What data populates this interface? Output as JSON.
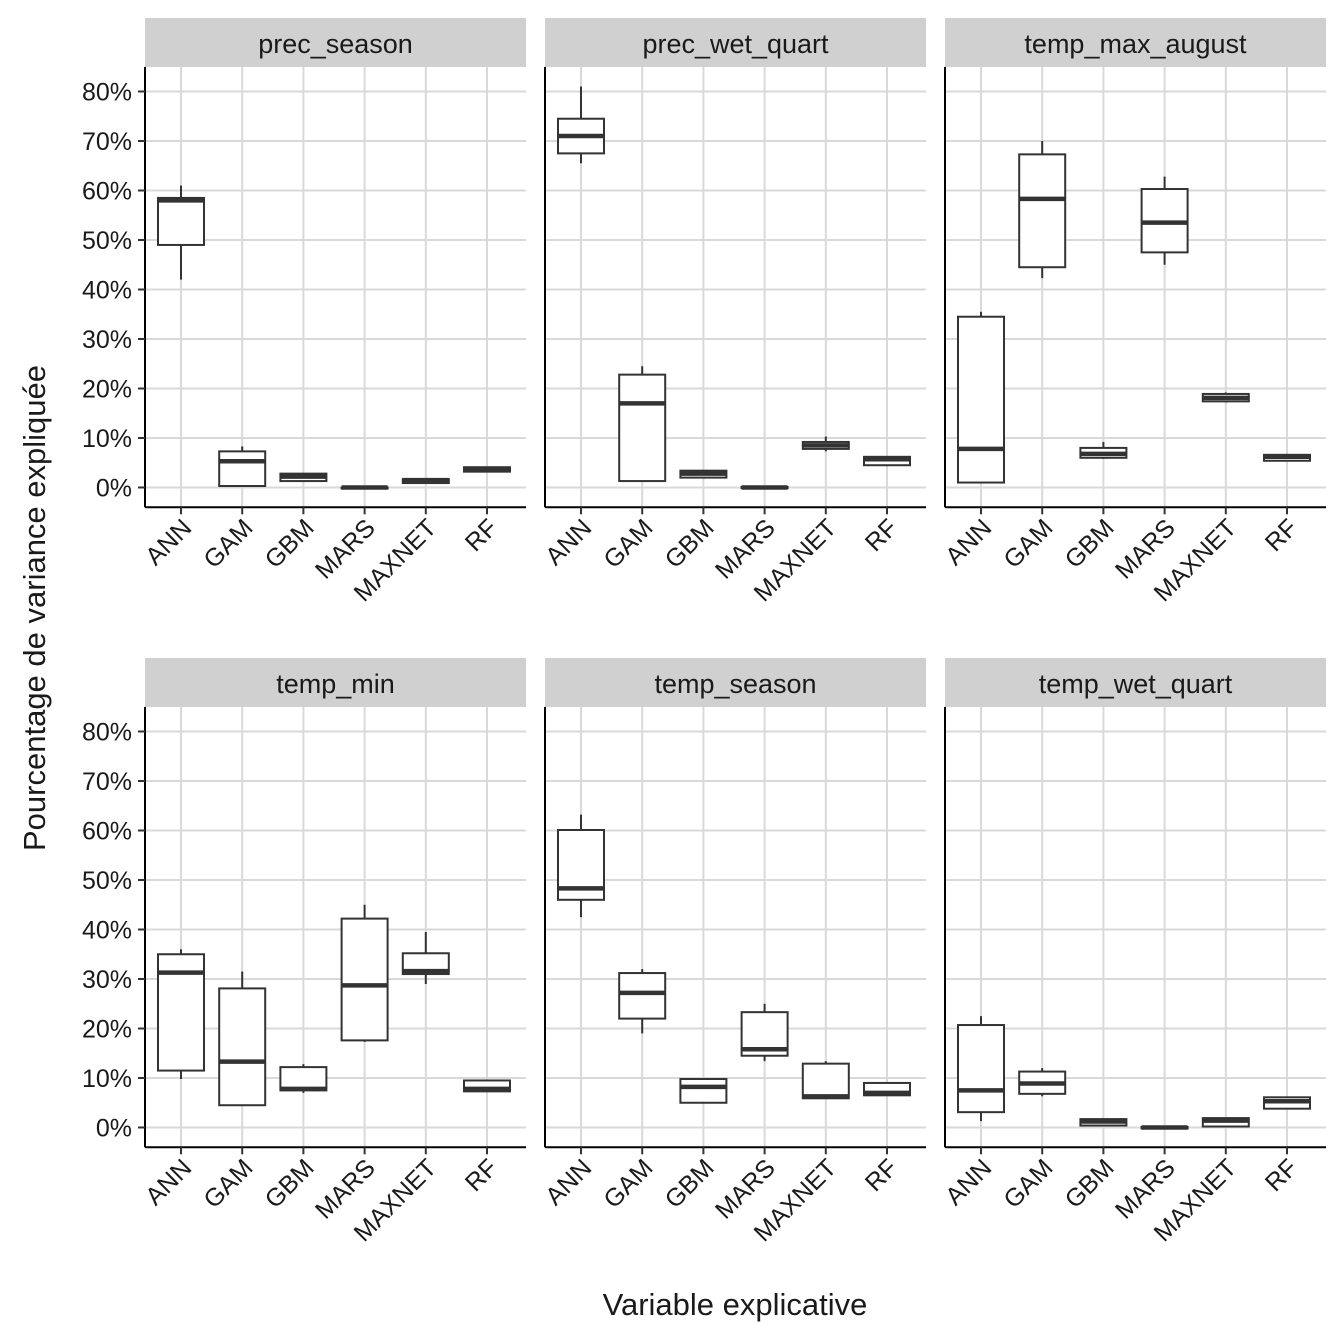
{
  "chart_data": {
    "type": "boxplot",
    "facet_layout": "2 rows x 3 columns",
    "xlabel": "Variable explicative",
    "ylabel": "Pourcentage de variance expliquée",
    "ylim": [
      -4,
      85
    ],
    "y_ticks": [
      0,
      10,
      20,
      30,
      40,
      50,
      60,
      70,
      80
    ],
    "y_tick_labels": [
      "0%",
      "10%",
      "20%",
      "30%",
      "40%",
      "50%",
      "60%",
      "70%",
      "80%"
    ],
    "categories": [
      "ANN",
      "GAM",
      "GBM",
      "MARS",
      "MAXNET",
      "RF"
    ],
    "colors": {
      "box_stroke": "#333333",
      "grid": "#d9d9d9",
      "strip_bg": "#d0d0d0",
      "background": "#ffffff"
    },
    "facets": [
      {
        "title": "prec_season",
        "boxes": [
          {
            "category": "ANN",
            "min": 42,
            "q1": 49,
            "median": 58,
            "q3": 58.5,
            "max": 61
          },
          {
            "category": "GAM",
            "min": 0.3,
            "q1": 0.3,
            "median": 5.3,
            "q3": 7.3,
            "max": 8.3
          },
          {
            "category": "GBM",
            "min": 1.3,
            "q1": 1.3,
            "median": 2.2,
            "q3": 2.8,
            "max": 2.8
          },
          {
            "category": "MARS",
            "min": -0.2,
            "q1": -0.2,
            "median": 0,
            "q3": 0,
            "max": 0
          },
          {
            "category": "MAXNET",
            "min": 0.9,
            "q1": 0.9,
            "median": 1.5,
            "q3": 1.7,
            "max": 1.7
          },
          {
            "category": "RF",
            "min": 3.2,
            "q1": 3.2,
            "median": 3.7,
            "q3": 4.1,
            "max": 4.1
          }
        ]
      },
      {
        "title": "prec_wet_quart",
        "boxes": [
          {
            "category": "ANN",
            "min": 65.5,
            "q1": 67.5,
            "median": 71,
            "q3": 74.5,
            "max": 81
          },
          {
            "category": "GAM",
            "min": 1.3,
            "q1": 1.3,
            "median": 17,
            "q3": 22.8,
            "max": 24.5
          },
          {
            "category": "GBM",
            "min": 2,
            "q1": 2,
            "median": 2.8,
            "q3": 3.4,
            "max": 3.5
          },
          {
            "category": "MARS",
            "min": 0,
            "q1": 0,
            "median": 0,
            "q3": 0.1,
            "max": 0.1
          },
          {
            "category": "MAXNET",
            "min": 7.3,
            "q1": 7.8,
            "median": 8.5,
            "q3": 9.2,
            "max": 10.3
          },
          {
            "category": "RF",
            "min": 4.5,
            "q1": 4.5,
            "median": 5.7,
            "q3": 6.2,
            "max": 6.2
          }
        ]
      },
      {
        "title": "temp_max_august",
        "boxes": [
          {
            "category": "ANN",
            "min": 1,
            "q1": 1,
            "median": 7.8,
            "q3": 34.5,
            "max": 35.5
          },
          {
            "category": "GAM",
            "min": 42.3,
            "q1": 44.5,
            "median": 58.3,
            "q3": 67.3,
            "max": 70
          },
          {
            "category": "GBM",
            "min": 5.8,
            "q1": 6,
            "median": 6.8,
            "q3": 8,
            "max": 9.2
          },
          {
            "category": "MARS",
            "min": 45,
            "q1": 47.5,
            "median": 53.5,
            "q3": 60.3,
            "max": 62.8
          },
          {
            "category": "MAXNET",
            "min": 17.2,
            "q1": 17.4,
            "median": 18.1,
            "q3": 18.9,
            "max": 19.2
          },
          {
            "category": "RF",
            "min": 5.4,
            "q1": 5.4,
            "median": 6.2,
            "q3": 6.6,
            "max": 6.6
          }
        ]
      },
      {
        "title": "temp_min",
        "boxes": [
          {
            "category": "ANN",
            "min": 9.8,
            "q1": 11.5,
            "median": 31.3,
            "q3": 35,
            "max": 36
          },
          {
            "category": "GAM",
            "min": 4.5,
            "q1": 4.5,
            "median": 13.3,
            "q3": 28.1,
            "max": 31.5
          },
          {
            "category": "GBM",
            "min": 7,
            "q1": 7.5,
            "median": 7.8,
            "q3": 12.2,
            "max": 12.8
          },
          {
            "category": "MARS",
            "min": 17.3,
            "q1": 17.6,
            "median": 28.7,
            "q3": 42.2,
            "max": 45
          },
          {
            "category": "MAXNET",
            "min": 29,
            "q1": 31,
            "median": 31.6,
            "q3": 35.2,
            "max": 39.5
          },
          {
            "category": "RF",
            "min": 7.3,
            "q1": 7.3,
            "median": 7.8,
            "q3": 9.5,
            "max": 9.5
          }
        ]
      },
      {
        "title": "temp_season",
        "boxes": [
          {
            "category": "ANN",
            "min": 42.5,
            "q1": 46,
            "median": 48.3,
            "q3": 60.1,
            "max": 63.2
          },
          {
            "category": "GAM",
            "min": 19,
            "q1": 22,
            "median": 27.2,
            "q3": 31.2,
            "max": 32
          },
          {
            "category": "GBM",
            "min": 5,
            "q1": 5,
            "median": 8.2,
            "q3": 9.8,
            "max": 10
          },
          {
            "category": "MARS",
            "min": 13.4,
            "q1": 14.5,
            "median": 15.8,
            "q3": 23.3,
            "max": 25
          },
          {
            "category": "MAXNET",
            "min": 5.9,
            "q1": 5.9,
            "median": 6.3,
            "q3": 12.9,
            "max": 13.4
          },
          {
            "category": "RF",
            "min": 6.5,
            "q1": 6.5,
            "median": 7,
            "q3": 9,
            "max": 9.2
          }
        ]
      },
      {
        "title": "temp_wet_quart",
        "boxes": [
          {
            "category": "ANN",
            "min": 1.3,
            "q1": 3.1,
            "median": 7.5,
            "q3": 20.7,
            "max": 22.5
          },
          {
            "category": "GAM",
            "min": 6.3,
            "q1": 6.8,
            "median": 8.9,
            "q3": 11.3,
            "max": 12
          },
          {
            "category": "GBM",
            "min": 0.2,
            "q1": 0.4,
            "median": 1.2,
            "q3": 1.7,
            "max": 1.7
          },
          {
            "category": "MARS",
            "min": -0.2,
            "q1": -0.2,
            "median": 0,
            "q3": 0.1,
            "max": 0.1
          },
          {
            "category": "MAXNET",
            "min": 0.2,
            "q1": 0.2,
            "median": 1.4,
            "q3": 1.9,
            "max": 1.9
          },
          {
            "category": "RF",
            "min": 3.8,
            "q1": 3.8,
            "median": 5.3,
            "q3": 6.1,
            "max": 6.1
          }
        ]
      }
    ]
  }
}
